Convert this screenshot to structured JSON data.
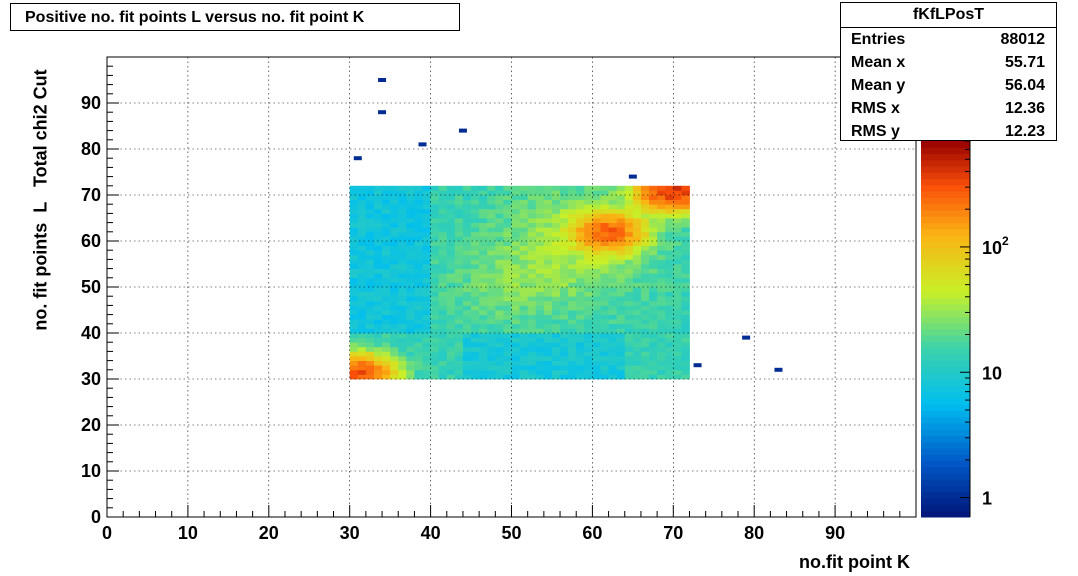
{
  "title": "Positive no. fit points L versus no. fit point K",
  "stats": {
    "name": "fKfLPosT",
    "rows": [
      {
        "label": "Entries",
        "value": "88012"
      },
      {
        "label": "Mean x",
        "value": "55.71"
      },
      {
        "label": "Mean y",
        "value": "56.04"
      },
      {
        "label": "RMS x",
        "value": "12.36"
      },
      {
        "label": "RMS y",
        "value": "12.23"
      }
    ]
  },
  "chart_data": {
    "type": "heatmap",
    "title": "Positive no. fit points L versus no. fit point K",
    "xlabel": "no.fit point K",
    "ylabel": "no. fit points  L   Total chi2 Cut",
    "xlim": [
      0,
      100
    ],
    "ylim": [
      0,
      100
    ],
    "x_ticks": [
      0,
      10,
      20,
      30,
      40,
      50,
      60,
      70,
      80,
      90
    ],
    "y_ticks": [
      0,
      10,
      20,
      30,
      40,
      50,
      60,
      70,
      80,
      90
    ],
    "grid": true,
    "colorbar": {
      "scale": "log",
      "range": [
        0.7,
        700
      ],
      "tick_labels": [
        "1",
        "10",
        "10^2"
      ],
      "tick_values": [
        1,
        10,
        100
      ]
    },
    "main_region": {
      "x_range": [
        30,
        72
      ],
      "y_range": [
        30,
        72
      ]
    },
    "hotspots": [
      {
        "x": 31,
        "y": 31,
        "value": 300
      },
      {
        "x": 62,
        "y": 62,
        "value": 250
      },
      {
        "x": 70,
        "y": 71,
        "value": 400
      }
    ],
    "outliers": [
      {
        "x": 34,
        "y": 95,
        "value": 1
      },
      {
        "x": 34,
        "y": 88,
        "value": 1
      },
      {
        "x": 39,
        "y": 81,
        "value": 1
      },
      {
        "x": 44,
        "y": 84,
        "value": 1
      },
      {
        "x": 31,
        "y": 78,
        "value": 1
      },
      {
        "x": 65,
        "y": 74,
        "value": 1
      },
      {
        "x": 73,
        "y": 33,
        "value": 1
      },
      {
        "x": 79,
        "y": 39,
        "value": 1
      },
      {
        "x": 83,
        "y": 32,
        "value": 1
      }
    ]
  }
}
